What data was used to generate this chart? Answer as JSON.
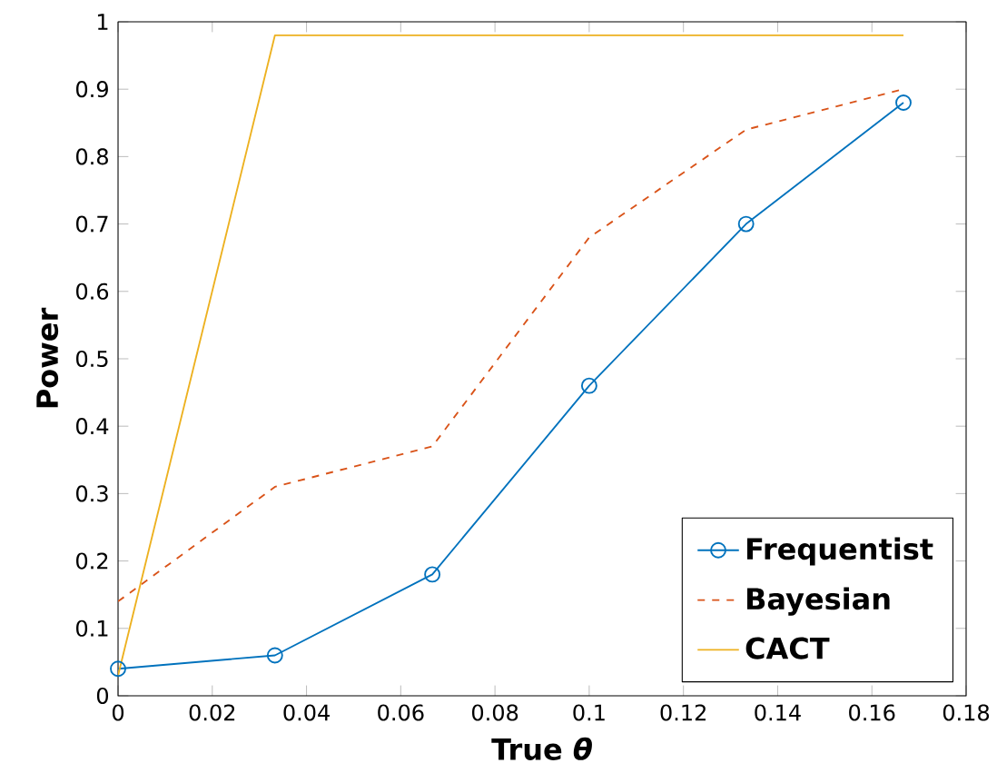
{
  "chart_data": {
    "type": "line",
    "xlabel": "True *θ*",
    "ylabel": "Power",
    "xlim": [
      0,
      0.18
    ],
    "ylim": [
      0,
      1
    ],
    "xticks": [
      0,
      0.02,
      0.04,
      0.06,
      0.08,
      0.1,
      0.12,
      0.14,
      0.16,
      0.18
    ],
    "yticks": [
      0,
      0.1,
      0.2,
      0.3,
      0.4,
      0.5,
      0.6,
      0.7,
      0.8,
      0.9,
      1
    ],
    "legend": "bottom right",
    "grid": false,
    "series": [
      {
        "name": "Frequentist",
        "color": "#0072bd",
        "marker": "circle",
        "line_style": "solid",
        "x": [
          0,
          0.0333,
          0.0667,
          0.1,
          0.1333,
          0.1667
        ],
        "values": [
          0.04,
          0.06,
          0.18,
          0.46,
          0.7,
          0.88
        ]
      },
      {
        "name": "Bayesian",
        "color": "#d95319",
        "marker": "none",
        "line_style": "dashed",
        "x": [
          0,
          0.0333,
          0.0667,
          0.1,
          0.1333,
          0.1667
        ],
        "values": [
          0.14,
          0.31,
          0.37,
          0.68,
          0.84,
          0.9
        ]
      },
      {
        "name": "CACT",
        "color": "#edb120",
        "marker": "none",
        "line_style": "solid",
        "x": [
          0,
          0.0333,
          0.0667,
          0.1,
          0.1333,
          0.1667
        ],
        "values": [
          0.03,
          0.98,
          0.98,
          0.98,
          0.98,
          0.98
        ]
      }
    ]
  }
}
